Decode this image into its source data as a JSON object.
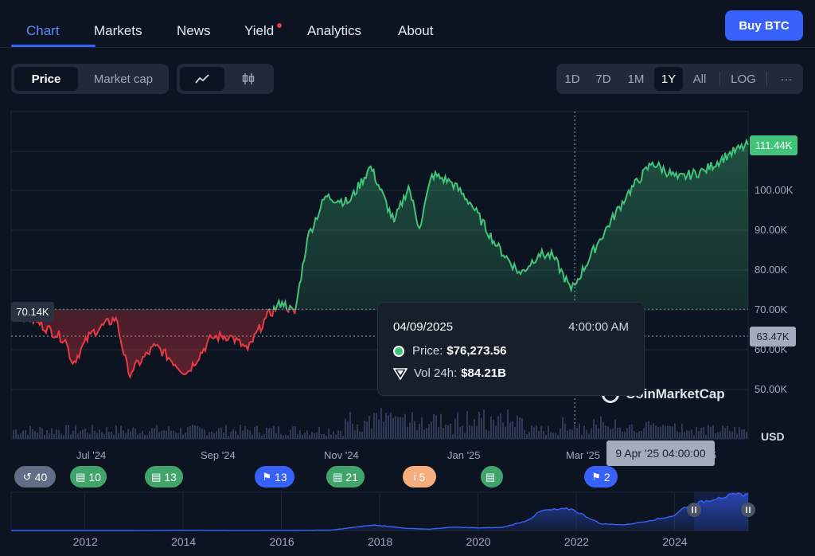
{
  "nav": {
    "items": [
      "Chart",
      "Markets",
      "News",
      "Yield",
      "Analytics",
      "About"
    ],
    "buy_label": "Buy BTC"
  },
  "controls": {
    "metric": [
      "Price",
      "Market cap"
    ],
    "ranges": [
      "1D",
      "7D",
      "1M",
      "1Y",
      "All"
    ],
    "log_label": "LOG",
    "more_label": "···"
  },
  "tooltip": {
    "date": "04/09/2025",
    "time": "4:00:00 AM",
    "price_label": "Price:",
    "price_value": "$76,273.56",
    "vol_label": "Vol 24h:",
    "vol_value": "$84.21B"
  },
  "tags": {
    "start_price": "70.14K",
    "last_price": "111.44K",
    "cursor_price": "63.47K",
    "cursor_date": "9 Apr '25 04:00:00"
  },
  "watermark": "CoinMarketCap",
  "currency": "USD",
  "badges": [
    {
      "icon": "history-icon",
      "glyph": "↺",
      "count": "40",
      "color": "grey"
    },
    {
      "icon": "document-icon",
      "glyph": "▤",
      "count": "10",
      "color": "green"
    },
    {
      "icon": "document-icon",
      "glyph": "▤",
      "count": "13",
      "color": "green"
    },
    {
      "icon": "flag-icon",
      "glyph": "⚑",
      "count": "13",
      "color": "blue"
    },
    {
      "icon": "document-icon",
      "glyph": "▤",
      "count": "21",
      "color": "green"
    },
    {
      "icon": "info-icon",
      "glyph": "i",
      "count": "5",
      "color": "orange"
    },
    {
      "icon": "document-icon",
      "glyph": "▤",
      "count": "",
      "color": "green"
    },
    {
      "icon": "flag-icon",
      "glyph": "⚑",
      "count": "2",
      "color": "blue"
    }
  ],
  "colors": {
    "up": "#41c47a",
    "down": "#ea3943",
    "accent": "#3861fb"
  },
  "chart_data": [
    {
      "type": "area",
      "title": "",
      "y_axis_ticks": [
        "50.00K",
        "60.00K",
        "70.00K",
        "80.00K",
        "90.00K",
        "100.00K"
      ],
      "x_axis_ticks": [
        "Jul '24",
        "Sep '24",
        "Nov '24",
        "Jan '25",
        "Mar '25",
        "'25"
      ],
      "ylim": [
        45000,
        115000
      ],
      "baseline": 70140,
      "xlabel": "",
      "ylabel": "USD",
      "x": [
        "2024-06-01",
        "2024-06-15",
        "2024-07-01",
        "2024-07-05",
        "2024-07-15",
        "2024-07-29",
        "2024-08-05",
        "2024-08-20",
        "2024-09-06",
        "2024-09-20",
        "2024-09-30",
        "2024-10-10",
        "2024-10-20",
        "2024-10-29",
        "2024-11-05",
        "2024-11-12",
        "2024-11-22",
        "2024-12-05",
        "2024-12-17",
        "2024-12-30",
        "2025-01-07",
        "2025-01-13",
        "2025-01-20",
        "2025-01-31",
        "2025-02-10",
        "2025-02-25",
        "2025-03-10",
        "2025-03-20",
        "2025-03-28",
        "2025-04-07",
        "2025-04-09",
        "2025-04-22",
        "2025-05-08",
        "2025-05-22",
        "2025-06-05",
        "2025-06-20",
        "2025-07-03",
        "2025-07-14"
      ],
      "values": [
        70140,
        67000,
        62500,
        56500,
        64000,
        68000,
        54000,
        61000,
        54000,
        63000,
        63500,
        60000,
        68000,
        72000,
        69000,
        88000,
        98500,
        97000,
        106000,
        92000,
        101000,
        90500,
        104000,
        102000,
        97000,
        86000,
        79000,
        84000,
        83500,
        75000,
        76273,
        87000,
        99000,
        107000,
        103000,
        105000,
        109000,
        111440
      ],
      "volume_note": "24h volume bars shown along bottom"
    },
    {
      "type": "area",
      "title": "",
      "x_axis_ticks": [
        "2012",
        "2014",
        "2016",
        "2018",
        "2020",
        "2022",
        "2024"
      ],
      "x": [
        2010.5,
        2012,
        2013,
        2014,
        2015,
        2016,
        2017,
        2017.9,
        2018.5,
        2019,
        2019.5,
        2020,
        2020.5,
        2021,
        2021.3,
        2021.9,
        2022.5,
        2023,
        2023.5,
        2024,
        2024.2,
        2024.9,
        2025.5
      ],
      "values": [
        0,
        5,
        100,
        800,
        300,
        400,
        1000,
        17000,
        7000,
        4000,
        10000,
        8000,
        9000,
        30000,
        60000,
        65000,
        20000,
        17000,
        30000,
        45000,
        70000,
        100000,
        111000
      ]
    }
  ]
}
